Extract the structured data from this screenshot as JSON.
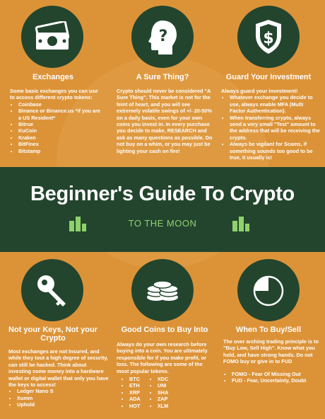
{
  "sections": {
    "exchanges": {
      "title": "Exchanges",
      "intro": "Some basic exchanges you can use to access different crypto tokens:",
      "items": [
        "Coinbase",
        "Binance or Binance.us *if you are a US Resident*",
        "Bitrue",
        "KuCoin",
        "Kraken",
        "BitFinex",
        "Bitstamp"
      ]
    },
    "sure_thing": {
      "title": "A Sure Thing?",
      "text": "Crypto should never be considered \"A Sure Thing\". This market is not for the feint of heart, and you will see extremely volatile swings of +/- 20-50% on a daily basis, even for your own coins you invest in. In every purchase you decide to make, RESEARCH and ask as many questions as possible. Do not buy on a whim, or you may just be lighting your cash on fire!"
    },
    "guard": {
      "title": "Guard Your Investment",
      "intro": "Always guard your investment!",
      "items": [
        "Whatever exchange you decide to use, always enable MFA (Multi Factor Authentication).",
        "When transferring crypto, always send a very small \"Test\" amount to the address that will be receiving the crypto.",
        "Always be vigilant for Scams, if something sounds too good to be true, it usually is!"
      ]
    },
    "keys": {
      "title_line1": "Not your Keys, Not your",
      "title_line2": "Crypto",
      "intro": "Most exchanges are not Insured, and while they tout a high degree of security, can still be hacked. Think about investing some money into a hardware wallet or digital wallet that only you have the keys to access!",
      "items": [
        "Ledger Nano S",
        "Xumm",
        "Uphold"
      ]
    },
    "good_coins": {
      "title": "Good Coins to Buy Into",
      "intro": "Always do your own research before buying into a coin. You are ultimately responsible for if you make profit, or loss. The following are some of the most popular tokens.",
      "col1": [
        "BTC",
        "ETH",
        "XRP",
        "ADA",
        "HOT"
      ],
      "col2": [
        "XDC",
        "UNI",
        "SHA",
        "ZAP",
        "XLM"
      ]
    },
    "when": {
      "title": "When To Buy/Sell",
      "intro": "The over arching trading principle is to \"Buy Low, Sell High\". Know what you hold, and have strong hands. Do not FOMO buy or give in to FUD",
      "items": [
        "FOMO - Fear Of Missing Out",
        "FUD - Fear, Uncertainty, Doubt"
      ]
    }
  },
  "banner": {
    "title": "Beginner's Guide To Crypto",
    "subtitle": "TO THE MOON"
  },
  "icons": [
    "money-icon",
    "question-head-icon",
    "dollar-shield-icon",
    "key-icon",
    "coin-stack-icon",
    "pie-chart-icon"
  ],
  "colors": {
    "background": "#dc9338",
    "dark_green": "#23452e",
    "accent_green": "#8fd26b"
  }
}
